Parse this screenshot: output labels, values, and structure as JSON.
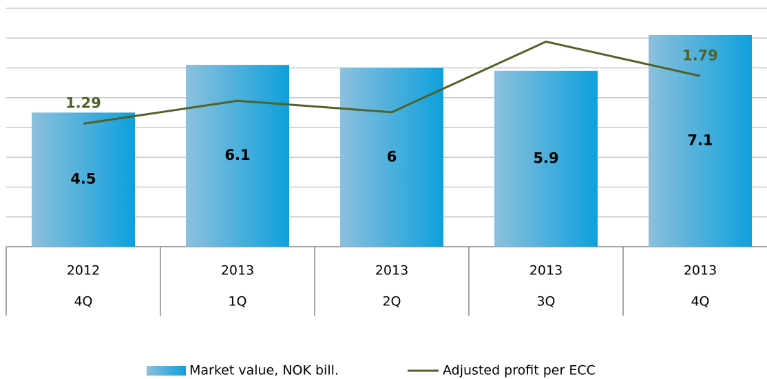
{
  "chart_data": {
    "type": "bar",
    "categories": [
      [
        "2012",
        "4Q"
      ],
      [
        "2013",
        "1Q"
      ],
      [
        "2013",
        "2Q"
      ],
      [
        "2013",
        "3Q"
      ],
      [
        "2013",
        "4Q"
      ]
    ],
    "series": [
      {
        "name": "Market value, NOK bill.",
        "type": "bar",
        "color": "#0ea0dc",
        "values": [
          4.5,
          6.1,
          6.0,
          5.9,
          7.1
        ]
      },
      {
        "name": "Adjusted profit per ECC",
        "type": "line",
        "axis": "y2",
        "color": "#4f6228",
        "values": [
          1.29,
          1.53,
          1.41,
          2.15,
          1.79
        ],
        "value_labels": [
          "1.29",
          null,
          null,
          null,
          "1.79"
        ]
      }
    ],
    "ylim": [
      0,
      8
    ],
    "yticks": [
      0,
      1,
      2,
      3,
      4,
      5,
      6,
      7,
      8
    ],
    "y2lim": [
      0,
      2.5
    ],
    "grid": true,
    "legend": "bottom"
  }
}
